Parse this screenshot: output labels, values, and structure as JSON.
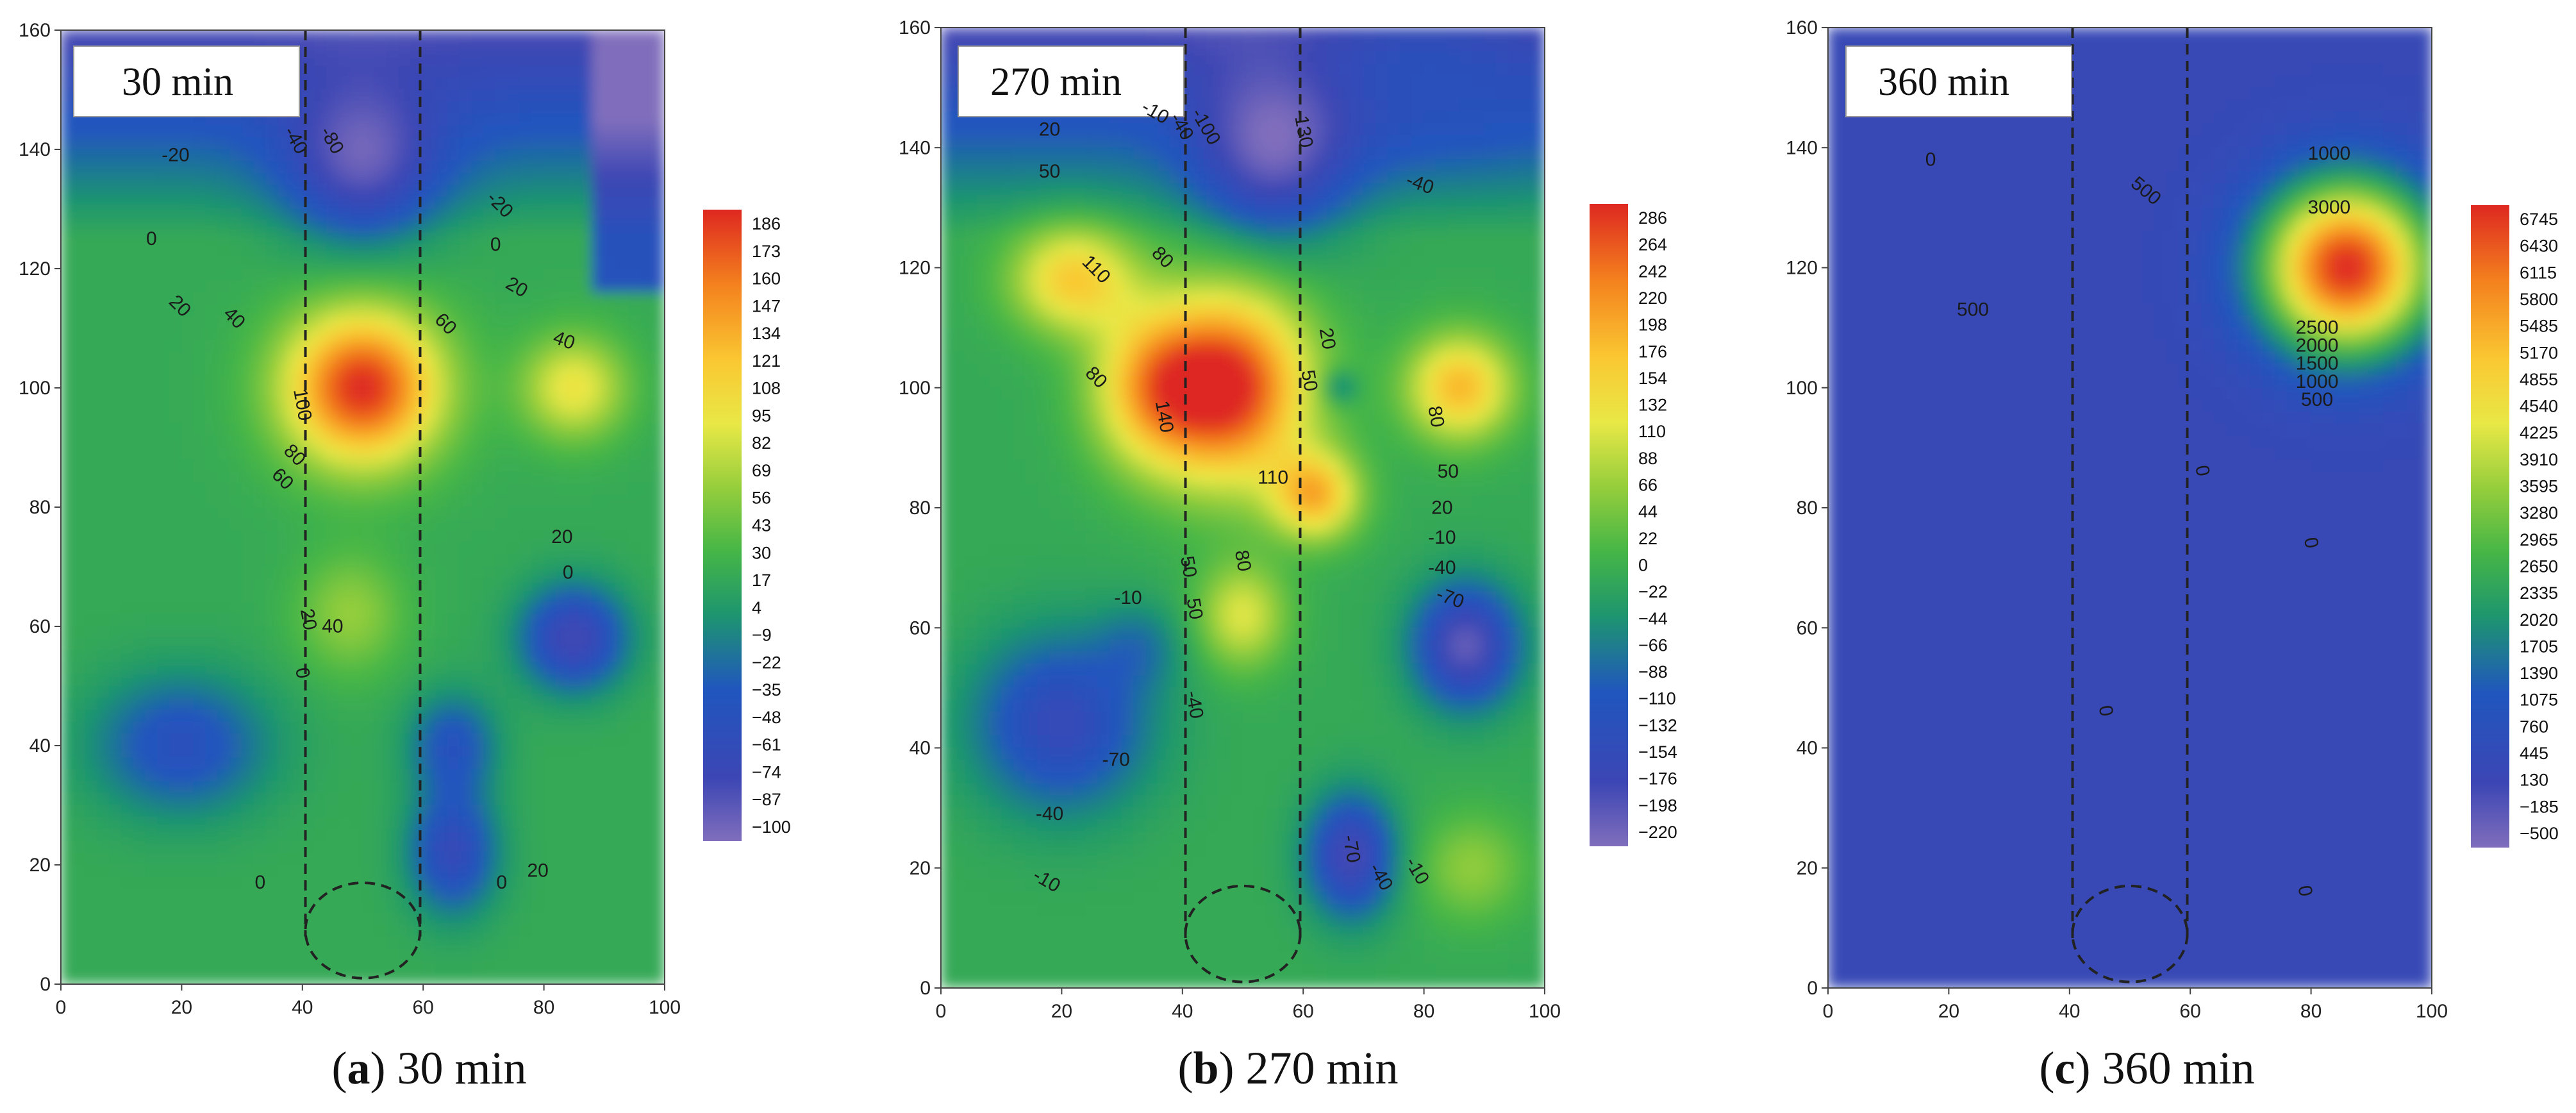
{
  "chart_data": [
    {
      "type": "heatmap",
      "panel_label": "30 min",
      "caption": {
        "letter": "a",
        "text": "30 min"
      },
      "xlim": [
        0,
        100
      ],
      "ylim": [
        0,
        160
      ],
      "x_ticks": [
        "0",
        "20",
        "40",
        "60",
        "80",
        "100"
      ],
      "y_ticks": [
        "0",
        "20",
        "40",
        "60",
        "80",
        "100",
        "120",
        "140",
        "160"
      ],
      "colorbar_range": [
        -100,
        186
      ],
      "colorbar_labels": [
        "186",
        "173",
        "160",
        "147",
        "134",
        "121",
        "108",
        "95",
        "82",
        "69",
        "56",
        "43",
        "30",
        "17",
        "4",
        "−9",
        "−22",
        "−35",
        "−48",
        "−61",
        "−74",
        "−87",
        "−100"
      ],
      "hotspots": [
        {
          "x": 50,
          "y": 100,
          "value": 186,
          "sx": 9,
          "sy": 9
        },
        {
          "x": 85,
          "y": 100,
          "value": 95,
          "sx": 6,
          "sy": 6
        },
        {
          "x": 48,
          "y": 62,
          "value": 60,
          "sx": 6,
          "sy": 7
        },
        {
          "x": 50,
          "y": 140,
          "value": -95,
          "sx": 9,
          "sy": 10
        },
        {
          "x": 20,
          "y": 40,
          "value": -45,
          "sx": 10,
          "sy": 8
        },
        {
          "x": 85,
          "y": 58,
          "value": -75,
          "sx": 6,
          "sy": 6
        },
        {
          "x": 65,
          "y": 22,
          "value": -60,
          "sx": 5,
          "sy": 7
        },
        {
          "x": 65,
          "y": 40,
          "value": -40,
          "sx": 5,
          "sy": 6
        }
      ],
      "contour_labels": [
        {
          "text": "-20",
          "x": 19,
          "y": 138,
          "rot": 0
        },
        {
          "text": "-40",
          "x": 38,
          "y": 141,
          "rot": 60
        },
        {
          "text": "-80",
          "x": 44,
          "y": 141,
          "rot": 60
        },
        {
          "text": "-20",
          "x": 72,
          "y": 130,
          "rot": 45
        },
        {
          "text": "0",
          "x": 15,
          "y": 124,
          "rot": 0
        },
        {
          "text": "0",
          "x": 72,
          "y": 123,
          "rot": 0
        },
        {
          "text": "20",
          "x": 19,
          "y": 113,
          "rot": 45
        },
        {
          "text": "40",
          "x": 28,
          "y": 111,
          "rot": 45
        },
        {
          "text": "20",
          "x": 75,
          "y": 116,
          "rot": 30
        },
        {
          "text": "60",
          "x": 63,
          "y": 110,
          "rot": 45
        },
        {
          "text": "40",
          "x": 83,
          "y": 107,
          "rot": 20
        },
        {
          "text": "100",
          "x": 39,
          "y": 97,
          "rot": 80
        },
        {
          "text": "80",
          "x": 38,
          "y": 88,
          "rot": 45
        },
        {
          "text": "60",
          "x": 36,
          "y": 84,
          "rot": 45
        },
        {
          "text": "20",
          "x": 83,
          "y": 74,
          "rot": 0
        },
        {
          "text": "0",
          "x": 84,
          "y": 68,
          "rot": 0
        },
        {
          "text": "20",
          "x": 40,
          "y": 61,
          "rot": 80
        },
        {
          "text": "40",
          "x": 45,
          "y": 59,
          "rot": 0
        },
        {
          "text": "0",
          "x": 39,
          "y": 52,
          "rot": 80
        },
        {
          "text": "0",
          "x": 33,
          "y": 16,
          "rot": 0
        },
        {
          "text": "0",
          "x": 73,
          "y": 16,
          "rot": 0
        },
        {
          "text": "20",
          "x": 79,
          "y": 18,
          "rot": 0
        }
      ]
    },
    {
      "type": "heatmap",
      "panel_label": "270 min",
      "caption": {
        "letter": "b",
        "text": "270 min"
      },
      "xlim": [
        0,
        100
      ],
      "ylim": [
        0,
        160
      ],
      "x_ticks": [
        "0",
        "20",
        "40",
        "60",
        "80",
        "100"
      ],
      "y_ticks": [
        "0",
        "20",
        "40",
        "60",
        "80",
        "100",
        "120",
        "140",
        "160"
      ],
      "colorbar_range": [
        -220,
        286
      ],
      "colorbar_labels": [
        "286",
        "264",
        "242",
        "220",
        "198",
        "176",
        "154",
        "132",
        "110",
        "88",
        "66",
        "44",
        "22",
        "0",
        "−22",
        "−44",
        "−66",
        "−88",
        "−110",
        "−132",
        "−154",
        "−176",
        "−198",
        "−220"
      ],
      "hotspots": [
        {
          "x": 48,
          "y": 100,
          "value": 286,
          "sx": 9,
          "sy": 11
        },
        {
          "x": 22,
          "y": 118,
          "value": 160,
          "sx": 7,
          "sy": 6
        },
        {
          "x": 35,
          "y": 100,
          "value": 160,
          "sx": 7,
          "sy": 9
        },
        {
          "x": 62,
          "y": 82,
          "value": 180,
          "sx": 5,
          "sy": 5
        },
        {
          "x": 86,
          "y": 100,
          "value": 180,
          "sx": 6,
          "sy": 6
        },
        {
          "x": 50,
          "y": 62,
          "value": 110,
          "sx": 5,
          "sy": 6
        },
        {
          "x": 88,
          "y": 20,
          "value": 60,
          "sx": 6,
          "sy": 6
        },
        {
          "x": 55,
          "y": 142,
          "value": -220,
          "sx": 9,
          "sy": 11
        },
        {
          "x": 80,
          "y": 150,
          "value": -120,
          "sx": 14,
          "sy": 8
        },
        {
          "x": 20,
          "y": 44,
          "value": -150,
          "sx": 10,
          "sy": 10
        },
        {
          "x": 87,
          "y": 57,
          "value": -200,
          "sx": 6,
          "sy": 7
        },
        {
          "x": 68,
          "y": 22,
          "value": -180,
          "sx": 5,
          "sy": 7
        },
        {
          "x": 66,
          "y": 100,
          "value": -90,
          "sx": 2,
          "sy": 2
        },
        {
          "x": 33,
          "y": 57,
          "value": -60,
          "sx": 5,
          "sy": 5
        }
      ],
      "contour_labels": [
        {
          "text": "20",
          "x": 18,
          "y": 142,
          "rot": 0
        },
        {
          "text": "-10",
          "x": 35,
          "y": 145,
          "rot": 30
        },
        {
          "text": "-40",
          "x": 39,
          "y": 143,
          "rot": 60
        },
        {
          "text": "-100",
          "x": 43,
          "y": 143,
          "rot": 60
        },
        {
          "text": "-130",
          "x": 59,
          "y": 143,
          "rot": 80
        },
        {
          "text": "50",
          "x": 18,
          "y": 135,
          "rot": 0
        },
        {
          "text": "-40",
          "x": 79,
          "y": 133,
          "rot": 20
        },
        {
          "text": "110",
          "x": 25,
          "y": 119,
          "rot": 45
        },
        {
          "text": "80",
          "x": 36,
          "y": 121,
          "rot": 45
        },
        {
          "text": "80",
          "x": 25,
          "y": 101,
          "rot": 45
        },
        {
          "text": "140",
          "x": 36,
          "y": 95,
          "rot": 80
        },
        {
          "text": "20",
          "x": 63,
          "y": 108,
          "rot": 80
        },
        {
          "text": "50",
          "x": 60,
          "y": 101,
          "rot": 80
        },
        {
          "text": "80",
          "x": 81,
          "y": 95,
          "rot": 80
        },
        {
          "text": "110",
          "x": 55,
          "y": 84,
          "rot": 0
        },
        {
          "text": "50",
          "x": 84,
          "y": 85,
          "rot": 0
        },
        {
          "text": "20",
          "x": 83,
          "y": 79,
          "rot": 0
        },
        {
          "text": "-10",
          "x": 83,
          "y": 74,
          "rot": 0
        },
        {
          "text": "-40",
          "x": 83,
          "y": 69,
          "rot": 0
        },
        {
          "text": "-70",
          "x": 84,
          "y": 64,
          "rot": 20
        },
        {
          "text": "50",
          "x": 40,
          "y": 70,
          "rot": 80
        },
        {
          "text": "-10",
          "x": 31,
          "y": 64,
          "rot": 0
        },
        {
          "text": "50",
          "x": 41,
          "y": 63,
          "rot": 80
        },
        {
          "text": "80",
          "x": 49,
          "y": 71,
          "rot": 80
        },
        {
          "text": "-40",
          "x": 41,
          "y": 47,
          "rot": 80
        },
        {
          "text": "-70",
          "x": 29,
          "y": 37,
          "rot": 0
        },
        {
          "text": "-40",
          "x": 18,
          "y": 28,
          "rot": 0
        },
        {
          "text": "-10",
          "x": 17,
          "y": 17,
          "rot": 30
        },
        {
          "text": "-70",
          "x": 67,
          "y": 23,
          "rot": 80
        },
        {
          "text": "-40",
          "x": 72,
          "y": 18,
          "rot": 60
        },
        {
          "text": "-10",
          "x": 78,
          "y": 19,
          "rot": 60
        }
      ]
    },
    {
      "type": "heatmap",
      "panel_label": "360 min",
      "caption": {
        "letter": "c",
        "text": "360 min"
      },
      "xlim": [
        0,
        100
      ],
      "ylim": [
        0,
        160
      ],
      "x_ticks": [
        "0",
        "20",
        "40",
        "60",
        "80",
        "100"
      ],
      "y_ticks": [
        "0",
        "20",
        "40",
        "60",
        "80",
        "100",
        "120",
        "140",
        "160"
      ],
      "colorbar_range": [
        -500,
        6745
      ],
      "colorbar_labels": [
        "6745",
        "6430",
        "6115",
        "5800",
        "5485",
        "5170",
        "4855",
        "4540",
        "4225",
        "3910",
        "3595",
        "3280",
        "2965",
        "2650",
        "2335",
        "2020",
        "1705",
        "1390",
        "1075",
        "760",
        "445",
        "130",
        "−185",
        "−500"
      ],
      "hotspots": [
        {
          "x": 86,
          "y": 120,
          "value": 6745,
          "sx": 10,
          "sy": 10
        }
      ],
      "base_value": 400,
      "contour_labels": [
        {
          "text": "0",
          "x": 17,
          "y": 137,
          "rot": 0
        },
        {
          "text": "500",
          "x": 52,
          "y": 132,
          "rot": 40
        },
        {
          "text": "1000",
          "x": 83,
          "y": 138,
          "rot": 0
        },
        {
          "text": "3000",
          "x": 83,
          "y": 129,
          "rot": 0
        },
        {
          "text": "500",
          "x": 24,
          "y": 112,
          "rot": 0
        },
        {
          "text": "2500",
          "x": 81,
          "y": 109,
          "rot": 0
        },
        {
          "text": "2000",
          "x": 81,
          "y": 106,
          "rot": 0
        },
        {
          "text": "1500",
          "x": 81,
          "y": 103,
          "rot": 0
        },
        {
          "text": "1000",
          "x": 81,
          "y": 100,
          "rot": 0
        },
        {
          "text": "500",
          "x": 81,
          "y": 97,
          "rot": 0
        },
        {
          "text": "0",
          "x": 61,
          "y": 86,
          "rot": 80
        },
        {
          "text": "0",
          "x": 79,
          "y": 74,
          "rot": 80
        },
        {
          "text": "0",
          "x": 45,
          "y": 46,
          "rot": 80
        },
        {
          "text": "0",
          "x": 78,
          "y": 16,
          "rot": 80
        }
      ]
    }
  ]
}
